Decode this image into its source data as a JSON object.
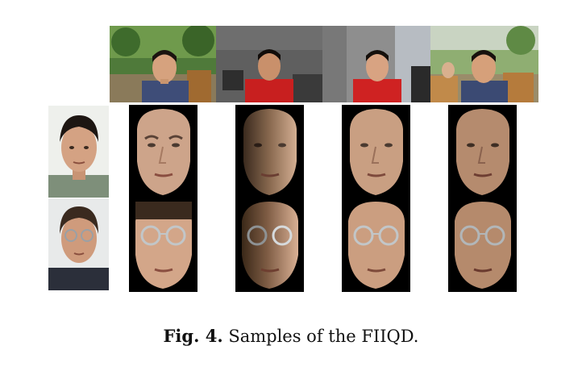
{
  "caption": {
    "label": "Fig. 4.",
    "text": " Samples of the FIIQD."
  }
}
